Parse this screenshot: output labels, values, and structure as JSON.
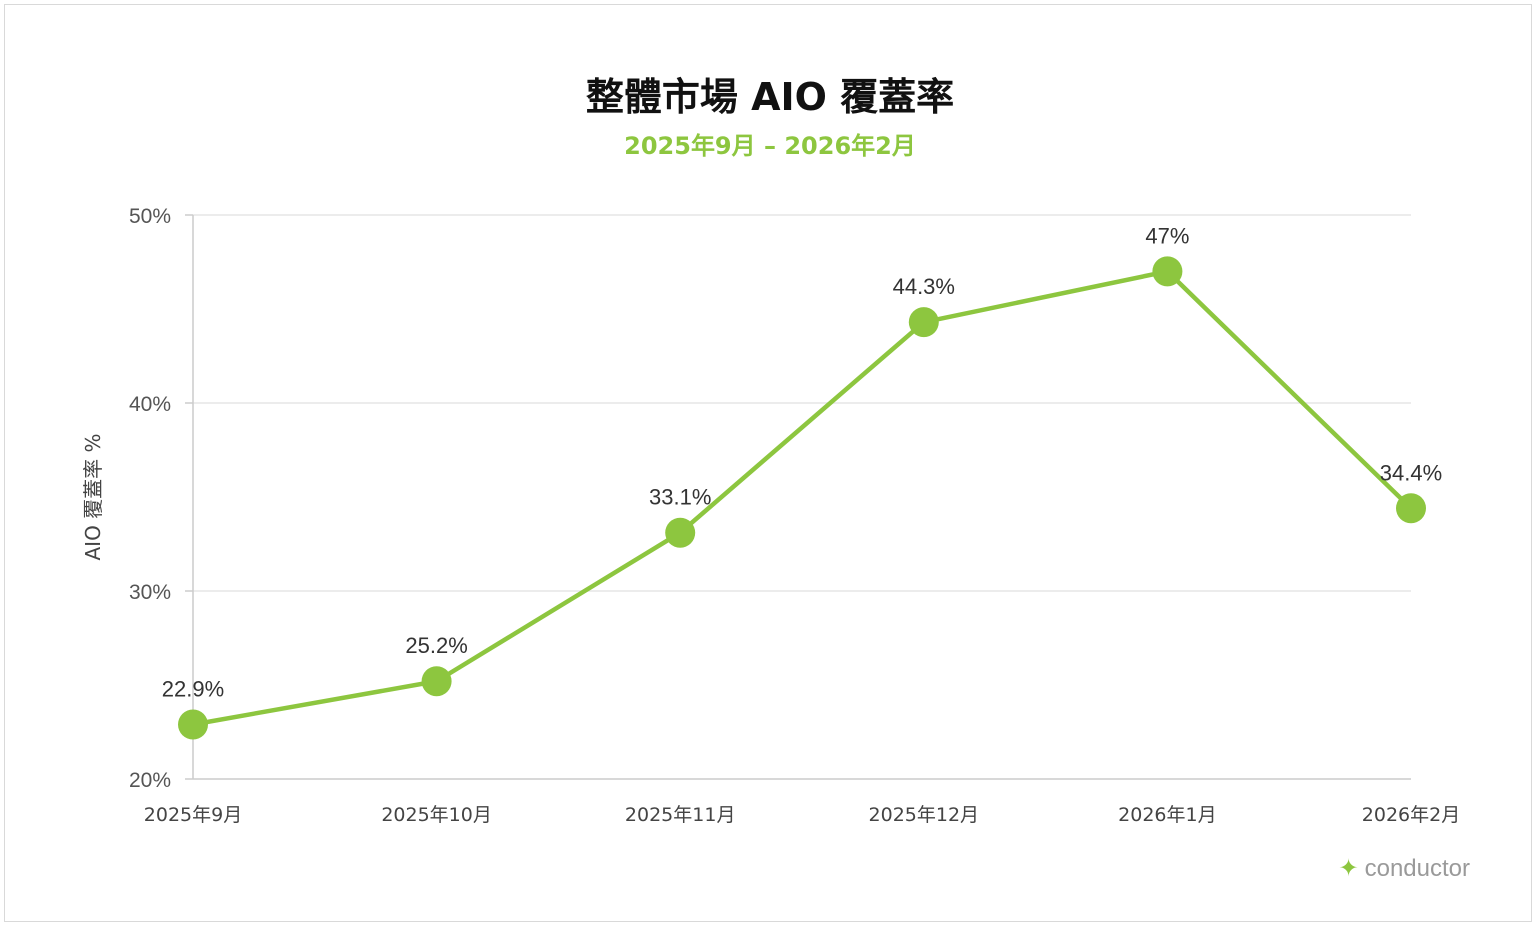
{
  "colors": {
    "accent": "#8dc63f",
    "grid": "#e6e6e6",
    "axis": "#cccccc"
  },
  "brand": {
    "icon": "sparkle-icon",
    "icon_glyph": "✦",
    "name": "conductor"
  },
  "chart_data": {
    "type": "line",
    "title": "整體市場 AIO 覆蓋率",
    "subtitle": "2025年9月 – 2026年2月",
    "ylabel": "AIO 覆蓋率 %",
    "xlabel": "",
    "ylim": [
      20,
      50
    ],
    "yticks": [
      20,
      30,
      40,
      50
    ],
    "ytick_labels": [
      "20%",
      "30%",
      "40%",
      "50%"
    ],
    "grid": true,
    "categories": [
      "2025年9月",
      "2025年10月",
      "2025年11月",
      "2025年12月",
      "2026年1月",
      "2026年2月"
    ],
    "series": [
      {
        "values": [
          22.9,
          25.2,
          33.1,
          44.3,
          47,
          34.4
        ],
        "labels": [
          "22.9%",
          "25.2%",
          "33.1%",
          "44.3%",
          "47%",
          "34.4%"
        ]
      }
    ]
  }
}
